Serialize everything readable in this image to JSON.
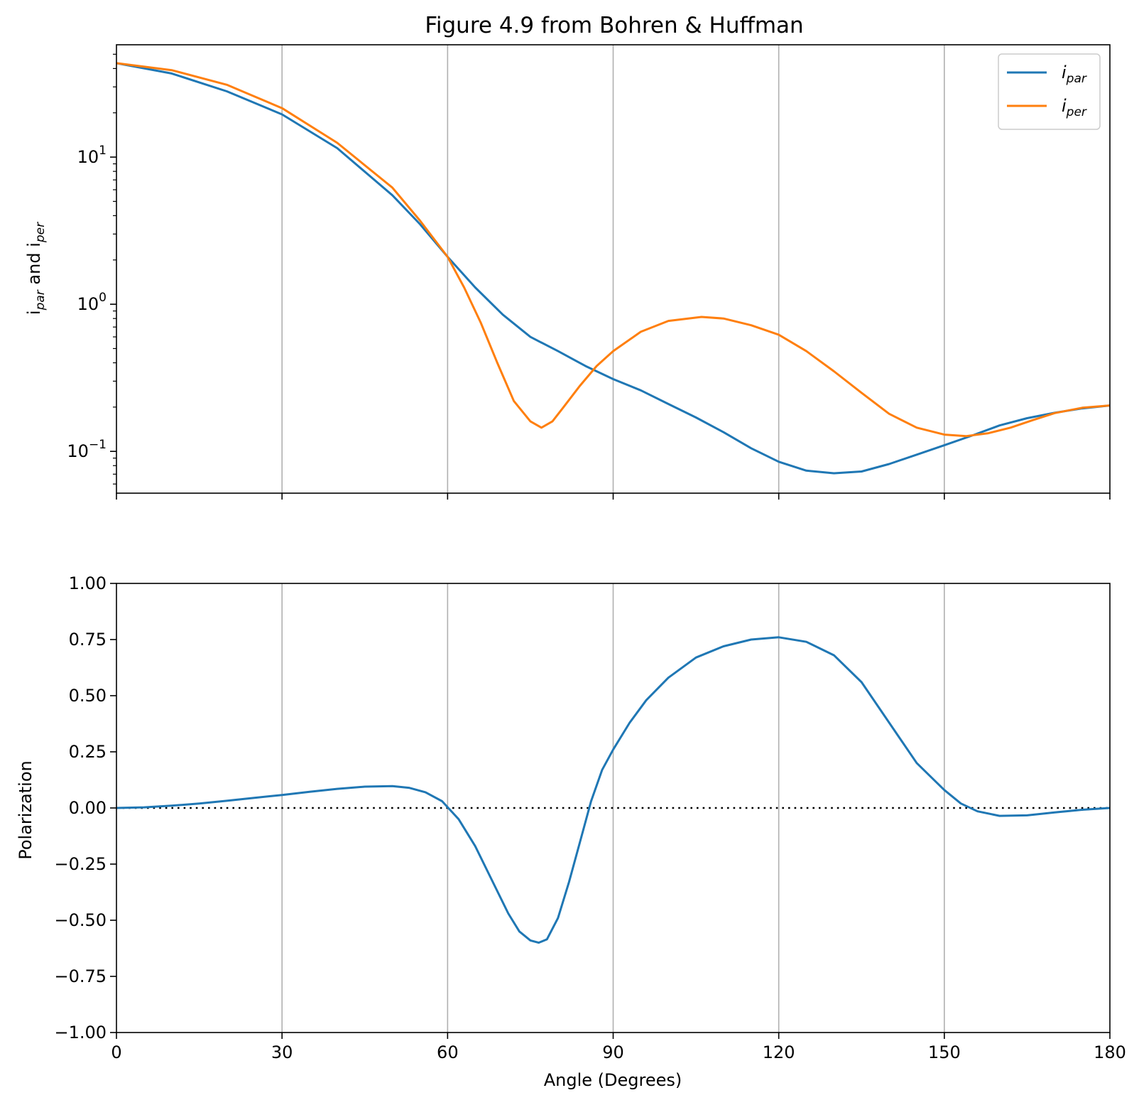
{
  "chart_data": [
    {
      "type": "line",
      "title": "Figure 4.9 from Bohren & Huffman",
      "ylabel": "i_par and i_per",
      "ylabel_parts": {
        "main_a": "i",
        "sub_a": "par",
        "mid": " and i",
        "sub_b": "per"
      },
      "yscale": "log",
      "xlim": [
        0,
        180
      ],
      "ylim": [
        0.052,
        58
      ],
      "x_ticks": [
        0,
        30,
        60,
        90,
        120,
        150,
        180
      ],
      "y_ticks": [
        {
          "value": 10,
          "base": "10",
          "exp": "1"
        },
        {
          "value": 1,
          "base": "10",
          "exp": "0"
        },
        {
          "value": 0.1,
          "base": "10",
          "exp": "−1"
        }
      ],
      "grid": "vertical",
      "legend_position": "top-right",
      "series": [
        {
          "name": "i_par",
          "legend_main": "i",
          "legend_sub": "par",
          "color": "#1f77b4",
          "x": [
            0,
            10,
            20,
            30,
            40,
            50,
            55,
            60,
            65,
            70,
            75,
            80,
            85,
            90,
            95,
            100,
            105,
            110,
            115,
            120,
            125,
            130,
            135,
            140,
            145,
            150,
            155,
            160,
            165,
            170,
            175,
            180
          ],
          "y": [
            43.5,
            37,
            28,
            19.5,
            11.5,
            5.5,
            3.5,
            2.1,
            1.3,
            0.85,
            0.6,
            0.48,
            0.38,
            0.31,
            0.26,
            0.21,
            0.17,
            0.135,
            0.105,
            0.085,
            0.074,
            0.071,
            0.073,
            0.082,
            0.095,
            0.11,
            0.128,
            0.15,
            0.168,
            0.183,
            0.196,
            0.205
          ]
        },
        {
          "name": "i_per",
          "legend_main": "i",
          "legend_sub": "per",
          "color": "#ff7f0e",
          "x": [
            0,
            10,
            20,
            30,
            40,
            50,
            55,
            60,
            63,
            66,
            69,
            72,
            75,
            77,
            79,
            81,
            84,
            87,
            90,
            95,
            100,
            106,
            110,
            115,
            120,
            125,
            130,
            135,
            140,
            145,
            150,
            154,
            158,
            162,
            166,
            170,
            175,
            180
          ],
          "y": [
            43.5,
            39,
            31,
            21.5,
            12.5,
            6.2,
            3.7,
            2.1,
            1.3,
            0.75,
            0.4,
            0.22,
            0.16,
            0.145,
            0.16,
            0.2,
            0.28,
            0.38,
            0.48,
            0.65,
            0.77,
            0.82,
            0.8,
            0.72,
            0.62,
            0.48,
            0.35,
            0.25,
            0.18,
            0.145,
            0.13,
            0.127,
            0.133,
            0.145,
            0.163,
            0.182,
            0.198,
            0.205
          ]
        }
      ]
    },
    {
      "type": "line",
      "xlabel": "Angle (Degrees)",
      "ylabel": "Polarization",
      "xlim": [
        0,
        180
      ],
      "ylim": [
        -1,
        1
      ],
      "x_ticks": [
        0,
        30,
        60,
        90,
        120,
        150,
        180
      ],
      "y_ticks": [
        "−1.00",
        "−0.75",
        "−0.50",
        "−0.25",
        "0.00",
        "0.25",
        "0.50",
        "0.75",
        "1.00"
      ],
      "y_tick_values": [
        -1,
        -0.75,
        -0.5,
        -0.25,
        0,
        0.25,
        0.5,
        0.75,
        1
      ],
      "grid": "vertical",
      "reference_line": {
        "y": 0,
        "style": "dotted",
        "color": "#000000"
      },
      "series": [
        {
          "color": "#1f77b4",
          "x": [
            0,
            5,
            10,
            15,
            20,
            25,
            30,
            35,
            40,
            45,
            50,
            53,
            56,
            59,
            62,
            65,
            68,
            71,
            73,
            75,
            76.5,
            78,
            80,
            82,
            84,
            86,
            88,
            90,
            93,
            96,
            100,
            105,
            110,
            115,
            120,
            125,
            130,
            135,
            140,
            145,
            150,
            153,
            156,
            160,
            165,
            170,
            175,
            180
          ],
          "y": [
            0,
            0.003,
            0.01,
            0.02,
            0.032,
            0.045,
            0.058,
            0.072,
            0.085,
            0.095,
            0.097,
            0.09,
            0.07,
            0.03,
            -0.05,
            -0.17,
            -0.32,
            -0.47,
            -0.55,
            -0.59,
            -0.6,
            -0.585,
            -0.49,
            -0.33,
            -0.15,
            0.03,
            0.17,
            0.26,
            0.38,
            0.48,
            0.58,
            0.67,
            0.72,
            0.75,
            0.76,
            0.74,
            0.68,
            0.56,
            0.38,
            0.2,
            0.08,
            0.02,
            -0.015,
            -0.035,
            -0.033,
            -0.02,
            -0.008,
            0
          ]
        }
      ]
    }
  ]
}
